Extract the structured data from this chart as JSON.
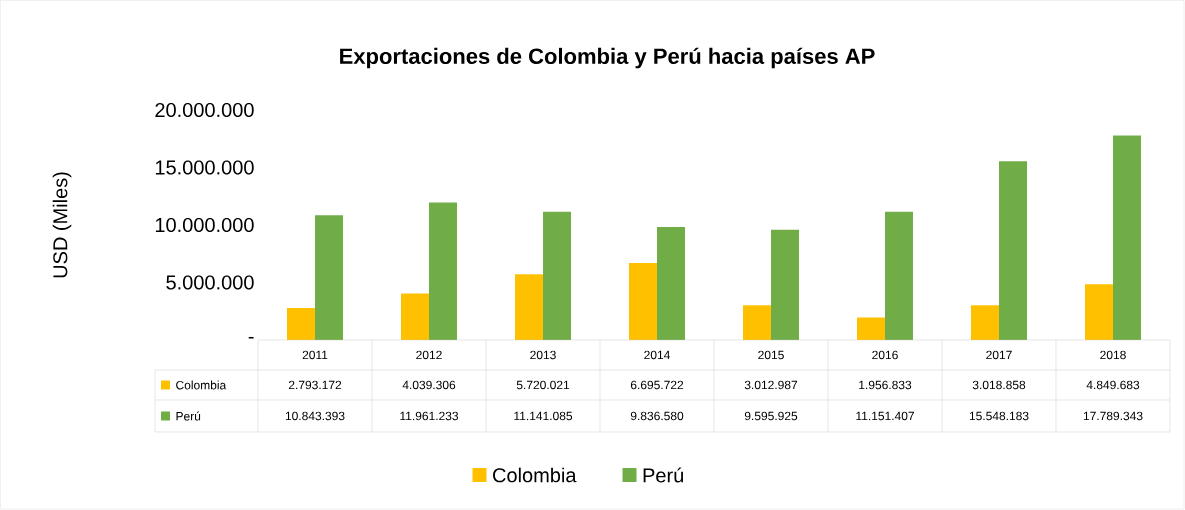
{
  "chart_data": {
    "type": "bar",
    "title": "Exportaciones de Colombia y Perú hacia países AP",
    "ylabel": "USD (Miles)",
    "categories": [
      "2011",
      "2012",
      "2013",
      "2014",
      "2015",
      "2016",
      "2017",
      "2018"
    ],
    "series": [
      {
        "name": "Colombia",
        "color": "#ffc000",
        "values": [
          2793172,
          4039306,
          5720021,
          6695722,
          3012987,
          1956833,
          3018858,
          4849683
        ],
        "value_labels": [
          "2.793.172",
          "4.039.306",
          "5.720.021",
          "6.695.722",
          "3.012.987",
          "1.956.833",
          "3.018.858",
          "4.849.683"
        ]
      },
      {
        "name": "Perú",
        "color": "#70ad47",
        "values": [
          10843393,
          11961233,
          11141085,
          9836580,
          9595925,
          11151407,
          15548183,
          17789343
        ],
        "value_labels": [
          "10.843.393",
          "11.961.233",
          "11.141.085",
          "9.836.580",
          "9.595.925",
          "11.151.407",
          "15.548.183",
          "17.789.343"
        ]
      }
    ],
    "ylim": [
      0,
      20000000
    ],
    "yticks": [
      {
        "value": 0,
        "label": "-"
      },
      {
        "value": 5000000,
        "label": "5.000.000"
      },
      {
        "value": 10000000,
        "label": "10.000.000"
      },
      {
        "value": 15000000,
        "label": "15.000.000"
      },
      {
        "value": 20000000,
        "label": "20.000.000"
      }
    ],
    "legend": "bottom"
  }
}
